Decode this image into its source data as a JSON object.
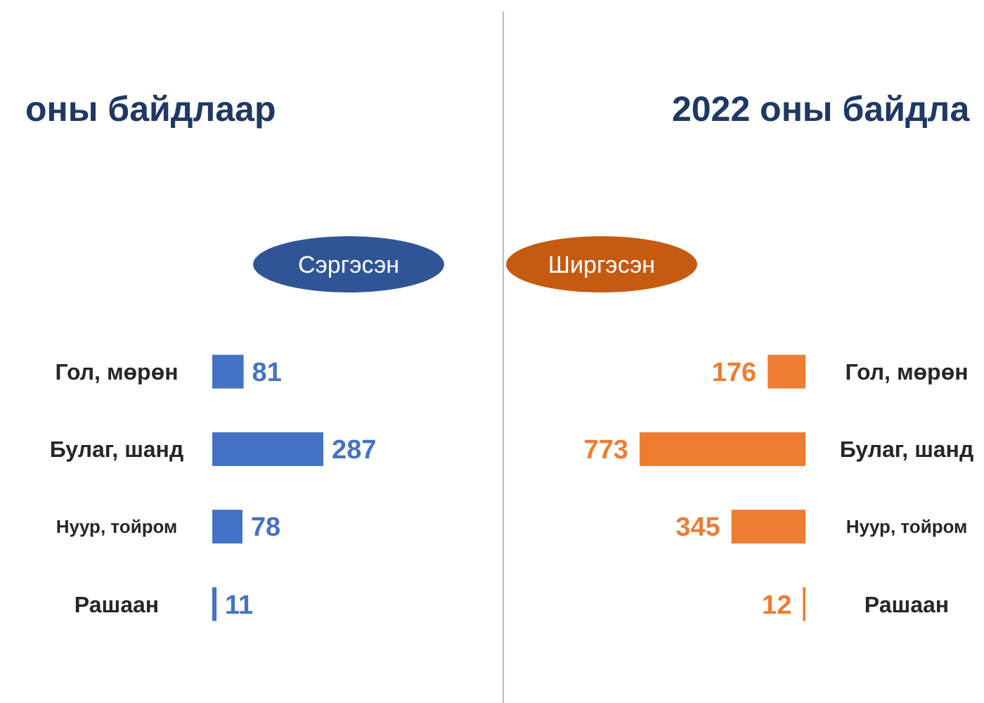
{
  "chart_data": [
    {
      "type": "bar",
      "orientation": "horizontal",
      "title": "оны байдлаар",
      "categories": [
        "Гол, мөрөн",
        "Булаг, шанд",
        "Нуур, тойром",
        "Рашаан"
      ],
      "series": [
        {
          "name": "Сэргэсэн",
          "color": "#4472c4",
          "values": [
            81,
            287,
            78,
            11
          ]
        }
      ],
      "data_labels": true,
      "legend": "top right"
    },
    {
      "type": "bar",
      "orientation": "horizontal",
      "title": "2022 оны байдла",
      "categories": [
        "Гол, мөрөн",
        "Булаг, шанд",
        "Нуур, тойром",
        "Рашаан"
      ],
      "series": [
        {
          "name": "Ширгэсэн",
          "color": "#ed7d31",
          "values": [
            176,
            773,
            345,
            12
          ]
        }
      ],
      "data_labels": true,
      "legend": "top left"
    }
  ]
}
